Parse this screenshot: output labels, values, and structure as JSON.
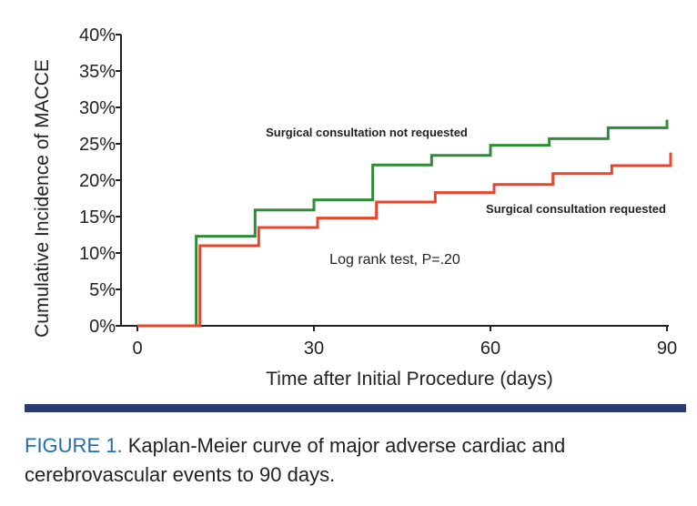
{
  "chart_data": {
    "type": "line",
    "step": true,
    "xlabel": "Time after Initial Procedure (days)",
    "ylabel": "Cumulative Incidence of MACCE",
    "xlim": [
      0,
      90
    ],
    "ylim": [
      0,
      40
    ],
    "x_ticks": [
      "0",
      "30",
      "60",
      "90"
    ],
    "x_tick_values": [
      0,
      30,
      60,
      90
    ],
    "y_ticks": [
      "0%",
      "5%",
      "10%",
      "15%",
      "20%",
      "25%",
      "30%",
      "35%",
      "40%"
    ],
    "y_tick_values": [
      0,
      5,
      10,
      15,
      20,
      25,
      30,
      35,
      40
    ],
    "series": [
      {
        "name": "Surgical consultation not requested",
        "color": "#2e8b3a",
        "x": [
          0,
          10,
          20,
          30,
          40,
          50,
          60,
          70,
          80,
          90
        ],
        "y": [
          0,
          12.3,
          15.9,
          17.3,
          22.1,
          23.4,
          24.8,
          25.7,
          27.2,
          28.3
        ]
      },
      {
        "name": "Surgical consultation requested",
        "color": "#e8452c",
        "x": [
          0,
          10,
          20,
          30,
          40,
          50,
          60,
          70,
          80,
          90
        ],
        "y": [
          0,
          11.0,
          13.5,
          14.8,
          17.0,
          18.3,
          19.4,
          20.9,
          22.0,
          23.8
        ]
      }
    ],
    "annotation": "Log rank test, P=.20"
  },
  "caption": {
    "label": "FIGURE 1.",
    "text": " Kaplan-Meier curve of major adverse cardiac and cerebrovascular events to 90 days."
  }
}
